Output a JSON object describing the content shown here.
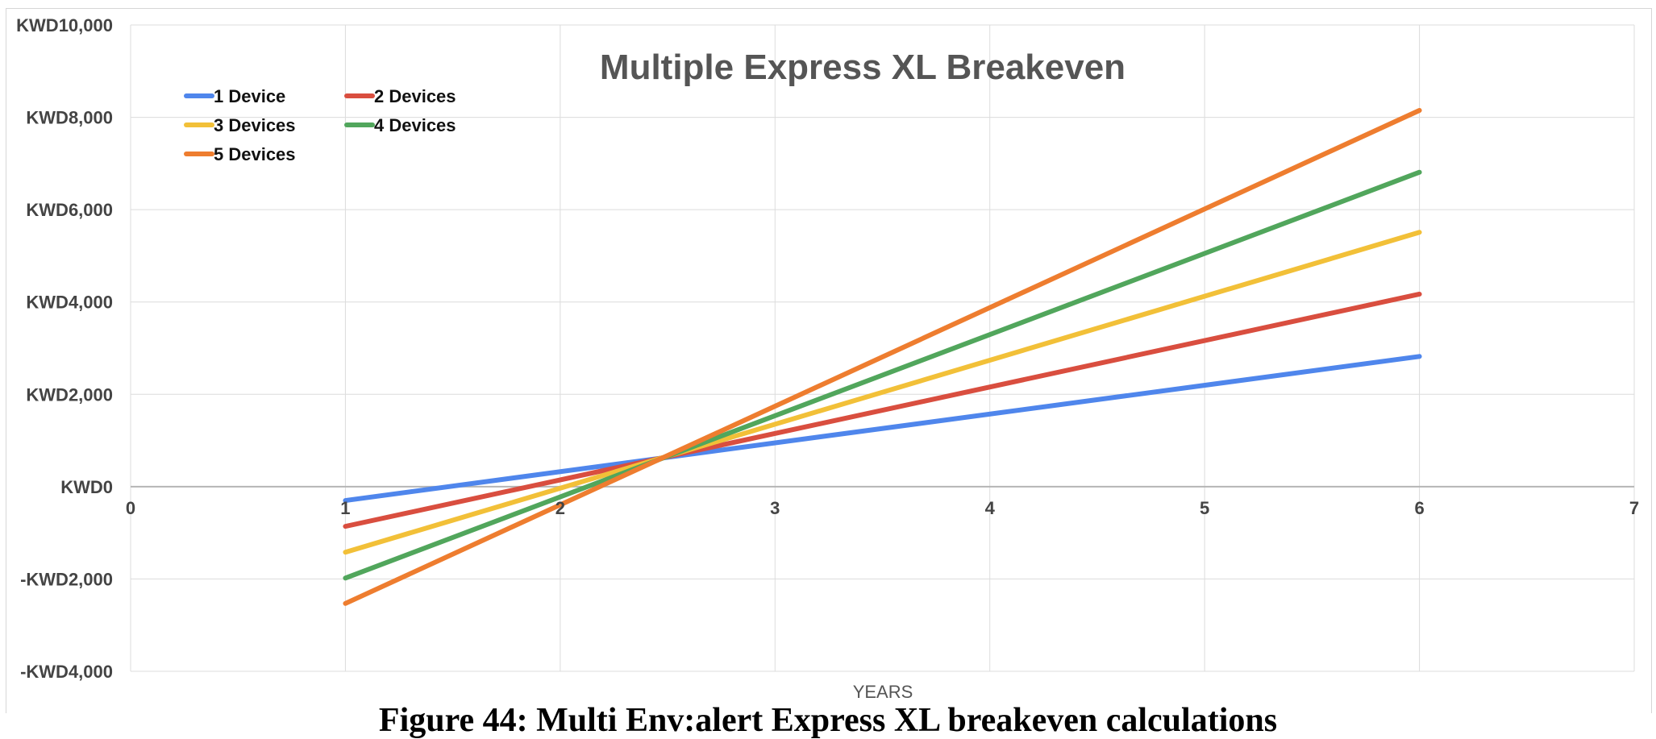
{
  "chart_data": {
    "type": "line",
    "title": "Multiple Express XL Breakeven",
    "xlabel": "YEARS",
    "ylabel": "",
    "xlim": [
      0,
      7
    ],
    "ylim": [
      -4000,
      10000
    ],
    "x_ticks": [
      "0",
      "1",
      "2",
      "3",
      "4",
      "5",
      "6",
      "7"
    ],
    "y_ticks": [
      "KWD10,000",
      "KWD8,000",
      "KWD6,000",
      "KWD4,000",
      "KWD2,000",
      "KWD0",
      "-KWD2,000",
      "-KWD4,000"
    ],
    "grid": true,
    "legend_position": "top-left",
    "x": [
      1,
      6
    ],
    "series": [
      {
        "name": "1 Device",
        "color": "#4f86ec",
        "values": [
          -300,
          2820
        ]
      },
      {
        "name": "2 Devices",
        "color": "#d94e3f",
        "values": [
          -860,
          4170
        ]
      },
      {
        "name": "3 Devices",
        "color": "#f2c038",
        "values": [
          -1420,
          5510
        ]
      },
      {
        "name": "4 Devices",
        "color": "#51a65c",
        "values": [
          -1980,
          6810
        ]
      },
      {
        "name": "5 Devices",
        "color": "#ee7d2f",
        "values": [
          -2530,
          8150
        ]
      }
    ]
  },
  "caption": "Figure 44: Multi Env:alert Express XL breakeven calculations"
}
